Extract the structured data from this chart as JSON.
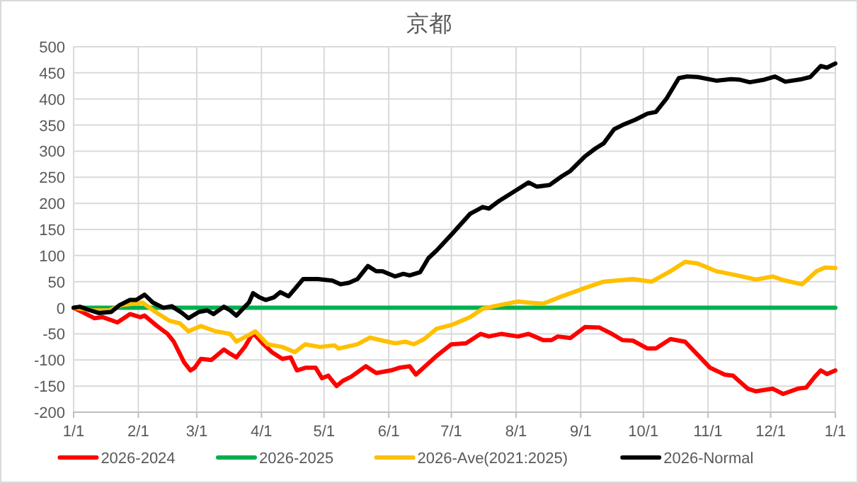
{
  "chart_data": {
    "type": "line",
    "title": "京都",
    "xlim": [
      "2026-01-01",
      "2027-01-01"
    ],
    "xticks": [
      {
        "value": "2026-01-01",
        "label": "1/1"
      },
      {
        "value": "2026-02-01",
        "label": "2/1"
      },
      {
        "value": "2026-03-01",
        "label": "3/1"
      },
      {
        "value": "2026-04-01",
        "label": "4/1"
      },
      {
        "value": "2026-05-01",
        "label": "5/1"
      },
      {
        "value": "2026-06-01",
        "label": "6/1"
      },
      {
        "value": "2026-07-01",
        "label": "7/1"
      },
      {
        "value": "2026-08-01",
        "label": "8/1"
      },
      {
        "value": "2026-09-01",
        "label": "9/1"
      },
      {
        "value": "2026-10-01",
        "label": "10/1"
      },
      {
        "value": "2026-11-01",
        "label": "11/1"
      },
      {
        "value": "2026-12-01",
        "label": "12/1"
      },
      {
        "value": "2027-01-01",
        "label": "1/1"
      }
    ],
    "ylim": [
      -200,
      500
    ],
    "yticks": [
      -200,
      -150,
      -100,
      -50,
      0,
      50,
      100,
      150,
      200,
      250,
      300,
      350,
      400,
      450,
      500
    ],
    "grid": true,
    "legend": "bottom",
    "marker": "none",
    "line_style": "solid",
    "series": [
      {
        "name": "2026-2024",
        "color": "#ff0000",
        "x": [
          "2026-01-01",
          "2026-01-06",
          "2026-01-11",
          "2026-01-15",
          "2026-01-22",
          "2026-01-28",
          "2026-02-02",
          "2026-02-04",
          "2026-02-10",
          "2026-02-15",
          "2026-02-18",
          "2026-02-23",
          "2026-02-26",
          "2026-02-28",
          "2026-03-03",
          "2026-03-08",
          "2026-03-14",
          "2026-03-17",
          "2026-03-20",
          "2026-03-24",
          "2026-03-28",
          "2026-04-02",
          "2026-04-06",
          "2026-04-11",
          "2026-04-15",
          "2026-04-18",
          "2026-04-22",
          "2026-04-27",
          "2026-04-30",
          "2026-05-03",
          "2026-05-07",
          "2026-05-10",
          "2026-05-14",
          "2026-05-21",
          "2026-05-26",
          "2026-06-02",
          "2026-06-06",
          "2026-06-11",
          "2026-06-14",
          "2026-06-24",
          "2026-07-01",
          "2026-07-08",
          "2026-07-15",
          "2026-07-19",
          "2026-07-25",
          "2026-08-02",
          "2026-08-07",
          "2026-08-14",
          "2026-08-18",
          "2026-08-21",
          "2026-08-27",
          "2026-09-03",
          "2026-09-10",
          "2026-09-15",
          "2026-09-21",
          "2026-09-26",
          "2026-10-03",
          "2026-10-07",
          "2026-10-14",
          "2026-10-21",
          "2026-10-27",
          "2026-11-02",
          "2026-11-09",
          "2026-11-13",
          "2026-11-20",
          "2026-11-24",
          "2026-12-02",
          "2026-12-07",
          "2026-12-14",
          "2026-12-18",
          "2026-12-22",
          "2026-12-25",
          "2026-12-28",
          "2027-01-01"
        ],
        "values": [
          0,
          -10,
          -20,
          -18,
          -28,
          -12,
          -18,
          -15,
          -35,
          -50,
          -65,
          -105,
          -120,
          -115,
          -98,
          -100,
          -80,
          -88,
          -95,
          -75,
          -48,
          -70,
          -85,
          -98,
          -95,
          -120,
          -115,
          -115,
          -135,
          -130,
          -150,
          -140,
          -132,
          -112,
          -125,
          -120,
          -115,
          -112,
          -128,
          -92,
          -70,
          -68,
          -50,
          -55,
          -50,
          -55,
          -50,
          -62,
          -62,
          -55,
          -58,
          -37,
          -38,
          -48,
          -62,
          -63,
          -78,
          -78,
          -60,
          -65,
          -90,
          -115,
          -128,
          -130,
          -155,
          -160,
          -155,
          -165,
          -155,
          -153,
          -133,
          -120,
          -127,
          -120
        ]
      },
      {
        "name": "2026-2025",
        "color": "#00b050",
        "x": [
          "2026-01-01",
          "2027-01-01"
        ],
        "values": [
          0,
          0
        ]
      },
      {
        "name": "2026-Ave(2021:2025)",
        "color": "#ffc000",
        "x": [
          "2026-01-01",
          "2026-01-10",
          "2026-01-18",
          "2026-01-24",
          "2026-02-03",
          "2026-02-10",
          "2026-02-16",
          "2026-02-21",
          "2026-02-25",
          "2026-03-03",
          "2026-03-10",
          "2026-03-17",
          "2026-03-20",
          "2026-03-27",
          "2026-03-29",
          "2026-04-04",
          "2026-04-11",
          "2026-04-17",
          "2026-04-22",
          "2026-04-29",
          "2026-05-06",
          "2026-05-08",
          "2026-05-17",
          "2026-05-23",
          "2026-05-28",
          "2026-06-04",
          "2026-06-09",
          "2026-06-13",
          "2026-06-18",
          "2026-06-24",
          "2026-07-01",
          "2026-07-10",
          "2026-07-16",
          "2026-07-24",
          "2026-08-02",
          "2026-08-07",
          "2026-08-14",
          "2026-08-23",
          "2026-09-03",
          "2026-09-12",
          "2026-09-26",
          "2026-10-05",
          "2026-10-14",
          "2026-10-21",
          "2026-10-27",
          "2026-11-05",
          "2026-11-15",
          "2026-11-24",
          "2026-12-02",
          "2026-12-07",
          "2026-12-16",
          "2026-12-23",
          "2026-12-27",
          "2027-01-01"
        ],
        "values": [
          0,
          -5,
          -5,
          5,
          10,
          -10,
          -25,
          -30,
          -45,
          -35,
          -45,
          -50,
          -65,
          -50,
          -45,
          -70,
          -75,
          -85,
          -70,
          -75,
          -72,
          -78,
          -70,
          -57,
          -62,
          -68,
          -65,
          -70,
          -60,
          -40,
          -33,
          -18,
          -2,
          5,
          12,
          10,
          8,
          22,
          38,
          50,
          55,
          50,
          70,
          88,
          85,
          70,
          62,
          54,
          60,
          53,
          45,
          70,
          77,
          76
        ]
      },
      {
        "name": "2026-Normal",
        "color": "#000000",
        "x": [
          "2026-01-01",
          "2026-01-04",
          "2026-01-09",
          "2026-01-13",
          "2026-01-19",
          "2026-01-23",
          "2026-01-28",
          "2026-01-31",
          "2026-02-04",
          "2026-02-08",
          "2026-02-13",
          "2026-02-17",
          "2026-02-22",
          "2026-02-25",
          "2026-03-02",
          "2026-03-06",
          "2026-03-09",
          "2026-03-14",
          "2026-03-17",
          "2026-03-20",
          "2026-03-26",
          "2026-03-28",
          "2026-03-31",
          "2026-04-03",
          "2026-04-07",
          "2026-04-10",
          "2026-04-14",
          "2026-04-21",
          "2026-04-28",
          "2026-05-05",
          "2026-05-09",
          "2026-05-13",
          "2026-05-17",
          "2026-05-22",
          "2026-05-26",
          "2026-05-29",
          "2026-06-04",
          "2026-06-08",
          "2026-06-11",
          "2026-06-16",
          "2026-06-20",
          "2026-06-24",
          "2026-07-01",
          "2026-07-10",
          "2026-07-16",
          "2026-07-19",
          "2026-07-24",
          "2026-08-01",
          "2026-08-07",
          "2026-08-11",
          "2026-08-17",
          "2026-08-23",
          "2026-08-27",
          "2026-09-03",
          "2026-09-08",
          "2026-09-12",
          "2026-09-17",
          "2026-09-21",
          "2026-09-27",
          "2026-10-03",
          "2026-10-07",
          "2026-10-12",
          "2026-10-18",
          "2026-10-22",
          "2026-10-27",
          "2026-11-05",
          "2026-11-12",
          "2026-11-16",
          "2026-11-21",
          "2026-11-28",
          "2026-12-03",
          "2026-12-08",
          "2026-12-16",
          "2026-12-20",
          "2026-12-25",
          "2026-12-28",
          "2027-01-01"
        ],
        "values": [
          0,
          2,
          -5,
          -10,
          -8,
          5,
          15,
          15,
          25,
          10,
          0,
          3,
          -10,
          -20,
          -8,
          -5,
          -12,
          2,
          -5,
          -15,
          10,
          28,
          20,
          15,
          20,
          30,
          22,
          55,
          55,
          52,
          45,
          48,
          55,
          80,
          70,
          70,
          60,
          65,
          62,
          68,
          95,
          110,
          140,
          180,
          193,
          190,
          205,
          225,
          240,
          232,
          235,
          252,
          262,
          290,
          305,
          315,
          342,
          350,
          360,
          372,
          375,
          400,
          440,
          443,
          442,
          435,
          438,
          437,
          432,
          437,
          443,
          433,
          438,
          442,
          463,
          460,
          468
        ]
      }
    ]
  }
}
